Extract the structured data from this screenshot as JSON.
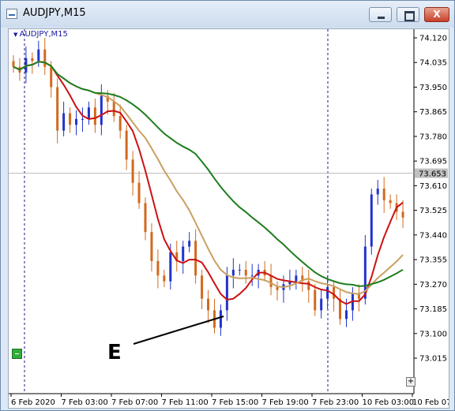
{
  "window": {
    "title": "AUDJPY,M15",
    "close_glyph": "X"
  },
  "chart": {
    "symbol_label": "AUDJPY,M15",
    "price_labels": [
      "74.120",
      "74.035",
      "73.950",
      "73.865",
      "73.780",
      "73.695",
      "73.610",
      "73.525",
      "73.440",
      "73.355",
      "73.270",
      "73.185",
      "73.100",
      "73.015"
    ],
    "current_price": "73.653",
    "time_labels": [
      "6 Feb 2020",
      "7 Feb 03:00",
      "7 Feb 07:00",
      "7 Feb 11:00",
      "7 Feb 15:00",
      "7 Feb 19:00",
      "7 Feb 23:00",
      "10 Feb 03:00",
      "10 Feb 07"
    ],
    "annotation": "E",
    "plus_label": "+",
    "colors": {
      "bull": "#2233cc",
      "bear": "#d2691e",
      "ma_fast": "#cc1111",
      "ma_mid": "#c8a060",
      "ma_slow": "#1e7d1e"
    }
  },
  "chart_data": {
    "type": "candlestick",
    "x_range": [
      "6 Feb 2020",
      "10 Feb 07"
    ],
    "ylim": [
      73.015,
      74.12
    ],
    "last_price": 73.653,
    "moving_averages": [
      {
        "color": "#cc1111",
        "start": 74.05,
        "end": 73.45
      },
      {
        "color": "#c8a060",
        "start": 74.08,
        "end": 73.33
      },
      {
        "color": "#1e7d1e",
        "start": 74.12,
        "end": 73.43
      }
    ]
  }
}
